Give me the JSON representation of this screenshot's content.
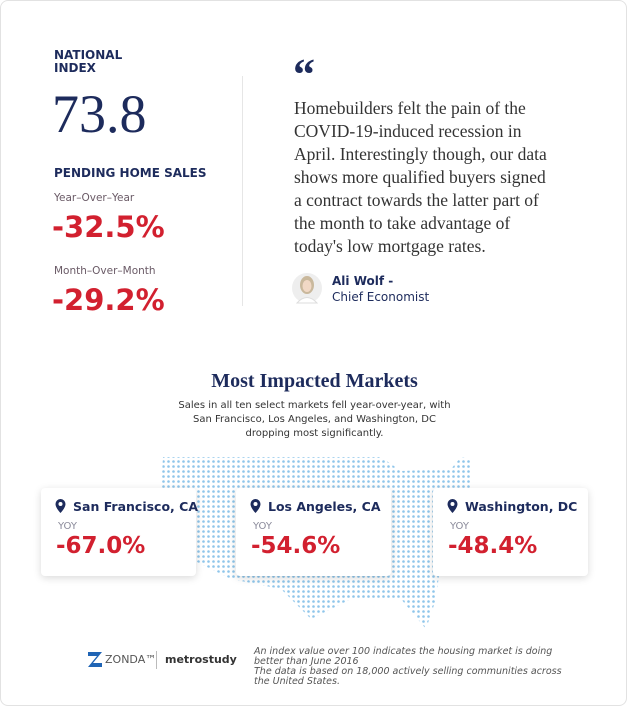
{
  "index": {
    "label_lines": [
      "NATIONAL",
      "INDEX"
    ],
    "value": "73.8"
  },
  "pending_sales": {
    "title": "PENDING HOME SALES",
    "metrics": [
      {
        "label": "Year–Over–Year",
        "value": "-32.5%"
      },
      {
        "label": "Month–Over–Month",
        "value": "-29.2%"
      }
    ]
  },
  "quote": {
    "mark": "“",
    "lines": [
      "Homebuilders felt the pain of the",
      "COVID-19-induced recession in",
      "April. Interestingly though, our data",
      "shows more qualified buyers signed",
      "a contract towards the latter part of",
      "the month to take advantage of",
      "today's low mortgage rates."
    ],
    "author": "Ali Wolf -",
    "role": "Chief Economist"
  },
  "markets": {
    "title": "Most Impacted Markets",
    "subtitle_lines": [
      "Sales in all ten select markets fell year-over-year, with",
      "San Francisco, Los Angeles, and Washington, DC",
      "dropping most significantly."
    ],
    "cards": [
      {
        "city": "San Francisco, CA",
        "label": "YOY",
        "value": "-67.0%"
      },
      {
        "city": "Los Angeles, CA",
        "label": "YOY",
        "value": "-54.6%"
      },
      {
        "city": "Washington, DC",
        "label": "YOY",
        "value": "-48.4%"
      }
    ]
  },
  "footer": {
    "brand": "ZONDA™",
    "partner": "metrostudy",
    "note_lines": [
      "An index value over 100 indicates the housing market is doing",
      "better than June 2016",
      "The data is based on 18,000 actively selling communities across",
      "the United States."
    ]
  }
}
